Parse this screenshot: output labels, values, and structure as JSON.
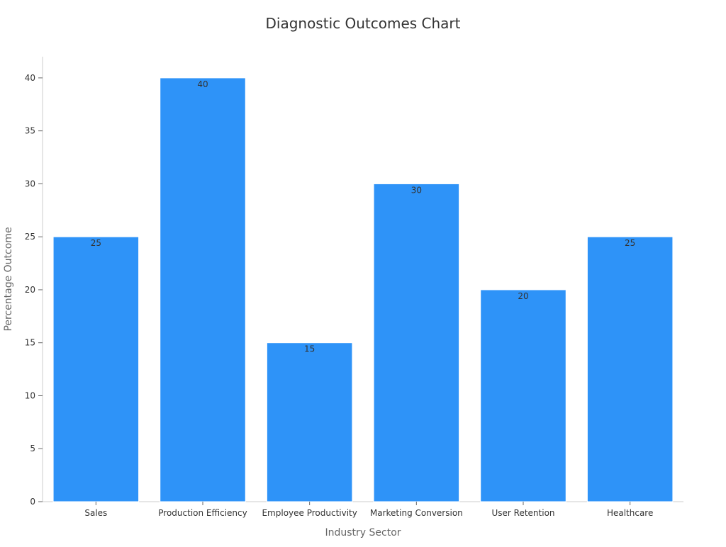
{
  "chart_data": {
    "type": "bar",
    "title": "Diagnostic Outcomes Chart",
    "xlabel": "Industry Sector",
    "ylabel": "Percentage Outcome",
    "categories": [
      "Sales",
      "Production Efficiency",
      "Employee Productivity",
      "Marketing Conversion",
      "User Retention",
      "Healthcare"
    ],
    "values": [
      25,
      40,
      15,
      30,
      20,
      25
    ],
    "ylim": [
      0,
      42
    ],
    "yticks": [
      0,
      5,
      10,
      15,
      20,
      25,
      30,
      35,
      40
    ],
    "grid": false,
    "legend": "none",
    "bar_color": "#2e93f8",
    "show_data_labels": true
  }
}
